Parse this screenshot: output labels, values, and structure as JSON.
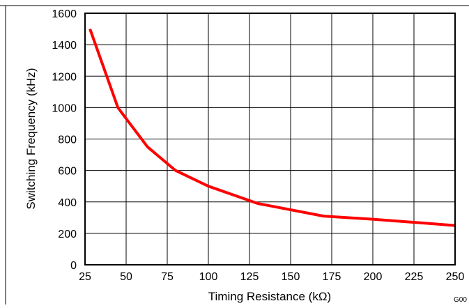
{
  "chart_data": {
    "type": "line",
    "title": "",
    "xlabel": "Timing Resistance (kΩ)",
    "ylabel": "Switching Frequency (kHz)",
    "xlim": [
      25,
      250
    ],
    "ylim": [
      0,
      1600
    ],
    "x_ticks": [
      25,
      50,
      75,
      100,
      125,
      150,
      175,
      200,
      225,
      250
    ],
    "y_ticks": [
      0,
      200,
      400,
      600,
      800,
      1000,
      1200,
      1400,
      1600
    ],
    "grid": true,
    "series": [
      {
        "x": [
          28,
          45,
          50,
          63,
          80,
          100,
          130,
          170,
          200,
          250
        ],
        "y": [
          1500,
          1000,
          930,
          750,
          600,
          500,
          390,
          310,
          290,
          250
        ],
        "color": "#ff0000"
      }
    ],
    "figure_id": "G00"
  }
}
